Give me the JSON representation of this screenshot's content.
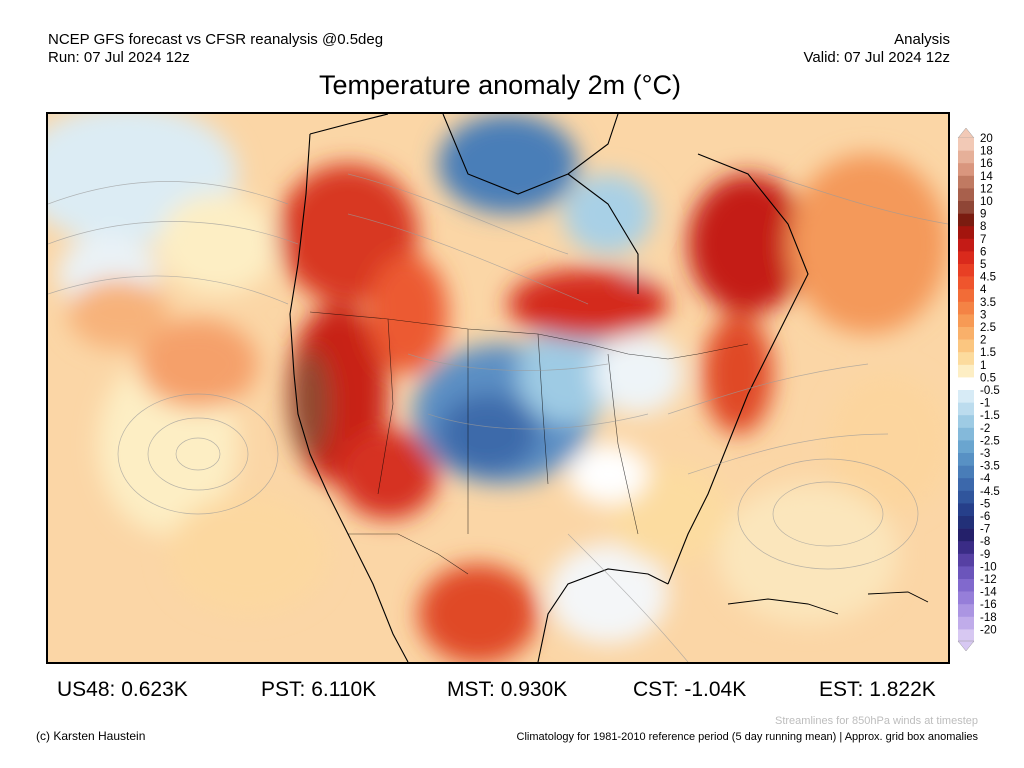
{
  "header": {
    "line1": "NCEP GFS forecast vs CFSR reanalysis @0.5deg",
    "line2": "Run: 07 Jul 2024 12z",
    "right1": "Analysis",
    "right2": "Valid: 07 Jul 2024 12z"
  },
  "title": "Temperature anomaly 2m (°C)",
  "colorbar": {
    "labels": [
      "20",
      "18",
      "16",
      "14",
      "12",
      "10",
      "9",
      "8",
      "7",
      "6",
      "5",
      "4.5",
      "4",
      "3.5",
      "3",
      "2.5",
      "2",
      "1.5",
      "1",
      "0.5",
      "-0.5",
      "-1",
      "-1.5",
      "-2",
      "-2.5",
      "-3",
      "-3.5",
      "-4",
      "-4.5",
      "-5",
      "-6",
      "-7",
      "-8",
      "-9",
      "-10",
      "-12",
      "-14",
      "-16",
      "-18",
      "-20"
    ],
    "colors": [
      "#f2c9b6",
      "#e6b099",
      "#d9967e",
      "#c07a62",
      "#a8604c",
      "#8f4636",
      "#7a1c10",
      "#a3150e",
      "#c41b16",
      "#da2a1c",
      "#e83f24",
      "#ef552d",
      "#f26c37",
      "#f48345",
      "#f79a55",
      "#f9b06a",
      "#fbc680",
      "#fcdb9d",
      "#fdeec4",
      "#ffffff",
      "#d7ebf6",
      "#bcdcee",
      "#9ecbe4",
      "#84b9da",
      "#6aa5cf",
      "#5891c4",
      "#497db8",
      "#3c68ab",
      "#30559c",
      "#263f8a",
      "#223078",
      "#24206a",
      "#3a2c86",
      "#5640a3",
      "#6b55bb",
      "#8169cd",
      "#967ed9",
      "#ab95e2",
      "#c0acea",
      "#d7c8f2"
    ]
  },
  "stats": [
    {
      "label": "US48:",
      "value": "0.623K"
    },
    {
      "label": "PST:",
      "value": "6.110K"
    },
    {
      "label": "MST:",
      "value": "0.930K"
    },
    {
      "label": "CST:",
      "value": "-1.04K"
    },
    {
      "label": "EST:",
      "value": "1.822K"
    }
  ],
  "footer": {
    "credit": "(c) Karsten Haustein",
    "streamlines_note": "Streamlines for 850hPa winds at timestep",
    "climatology_note": "Climatology for 1981-2010 reference period (5 day running mean) | Approx. grid box anomalies"
  }
}
